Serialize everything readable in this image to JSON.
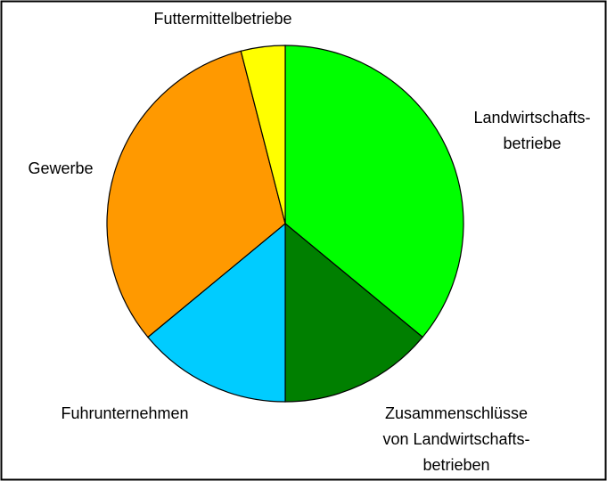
{
  "chart_data": {
    "type": "pie",
    "categories": [
      "Landwirtschafts-\nbetriebe",
      "Zusammenschlüsse\nvon Landwirtschafts-\nbetrieben",
      "Fuhrunternehmen",
      "Gewerbe",
      "Futtermittelbetriebe"
    ],
    "values": [
      36,
      14,
      14,
      32,
      4
    ],
    "colors": [
      "#00ff00",
      "#007f00",
      "#00ccff",
      "#ff9900",
      "#ffff00"
    ]
  }
}
